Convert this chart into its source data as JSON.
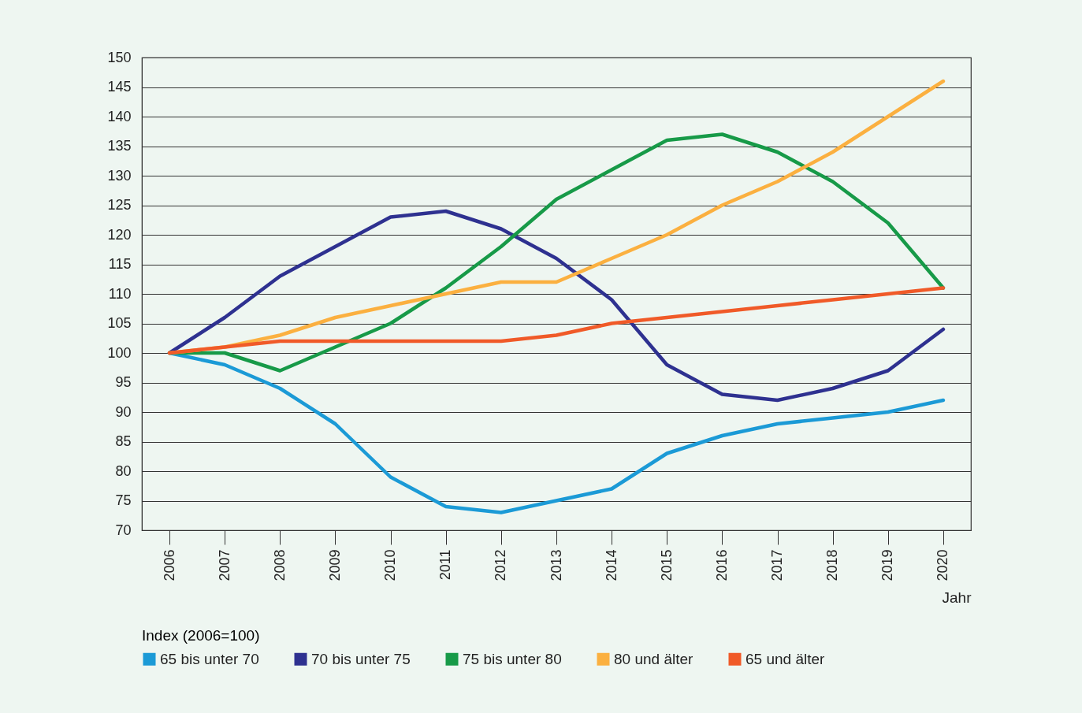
{
  "chart_data": {
    "type": "line",
    "xlabel": "Jahr",
    "legend_title": "Index (2006=100)",
    "categories": [
      "2006",
      "2007",
      "2008",
      "2009",
      "2010",
      "2011",
      "2012",
      "2013",
      "2014",
      "2015",
      "2016",
      "2017",
      "2018",
      "2019",
      "2020"
    ],
    "series": [
      {
        "name": "65 bis unter 70",
        "color": "#1b9ad6",
        "values": [
          100,
          98,
          94,
          88,
          79,
          74,
          73,
          75,
          77,
          83,
          86,
          88,
          89,
          90,
          92
        ]
      },
      {
        "name": "70 bis unter 75",
        "color": "#2e3190",
        "values": [
          100,
          106,
          113,
          118,
          123,
          124,
          121,
          116,
          109,
          98,
          93,
          92,
          94,
          97,
          104
        ]
      },
      {
        "name": "75 bis unter 80",
        "color": "#179a48",
        "values": [
          100,
          100,
          97,
          101,
          105,
          111,
          118,
          126,
          131,
          136,
          137,
          134,
          129,
          122,
          111
        ]
      },
      {
        "name": "80 und älter",
        "color": "#fbb040",
        "values": [
          100,
          101,
          103,
          106,
          108,
          110,
          112,
          112,
          116,
          120,
          125,
          129,
          134,
          140,
          146
        ]
      },
      {
        "name": "65 und älter",
        "color": "#f05a28",
        "values": [
          100,
          101,
          102,
          102,
          102,
          102,
          102,
          103,
          105,
          106,
          107,
          108,
          109,
          110,
          111
        ]
      }
    ],
    "ylim": [
      70,
      150
    ],
    "yticks": [
      70,
      75,
      80,
      85,
      90,
      95,
      100,
      105,
      110,
      115,
      120,
      125,
      130,
      135,
      140,
      145,
      150
    ],
    "grid": "y",
    "legend": "bottom",
    "marker": "none",
    "line_style": "solid"
  }
}
